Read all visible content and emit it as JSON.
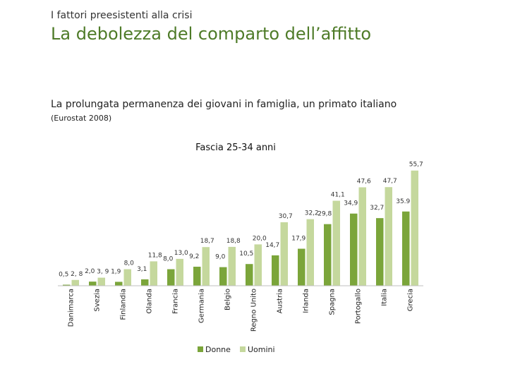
{
  "header": {
    "kicker": "I fattori preesistenti alla crisi",
    "title": "La debolezza del comparto dell’affitto",
    "subtitle": "La prolungata permanenza dei giovani in famiglia, un primato italiano",
    "source": "(Eurostat 2008)"
  },
  "chart_data": {
    "type": "bar",
    "title": "Fascia 25-34 anni",
    "categories": [
      "Danimarca",
      "Svezia",
      "Finlandia",
      "Olanda",
      "Francia",
      "Germania",
      "Belgio",
      "Regno Unito",
      "Austria",
      "Irlanda",
      "Spagna",
      "Portogallo",
      "Italia",
      "Grecia"
    ],
    "series": [
      {
        "name": "Donne",
        "values": [
          0.5,
          2.0,
          1.9,
          3.1,
          8.0,
          9.2,
          9.0,
          10.5,
          14.7,
          17.9,
          29.8,
          34.9,
          32.7,
          35.9
        ],
        "labels": [
          "0,5",
          "2,0",
          "1,9",
          "3,1",
          "8,0",
          "9,2",
          "9,0",
          "10,5",
          "14,7",
          "17,9",
          "29,8",
          "34,9",
          "32,7",
          "35.9"
        ]
      },
      {
        "name": "Uomini",
        "values": [
          2.8,
          3.9,
          8.0,
          11.8,
          13.0,
          18.7,
          18.8,
          20.0,
          30.7,
          32.2,
          41.1,
          47.6,
          47.7,
          55.7
        ],
        "labels": [
          "2, 8",
          "3, 9",
          "8,0",
          "11,8",
          "13,0",
          "18,7",
          "18,8",
          "20,0",
          "30,7",
          "32,2",
          "41,1",
          "47,6",
          "47,7",
          "55,7"
        ]
      }
    ],
    "colors": {
      "Donne": "#7ba53a",
      "Uomini": "#c5d89d"
    },
    "ylim": [
      0,
      58
    ],
    "grid": false,
    "legend": "bottom"
  }
}
